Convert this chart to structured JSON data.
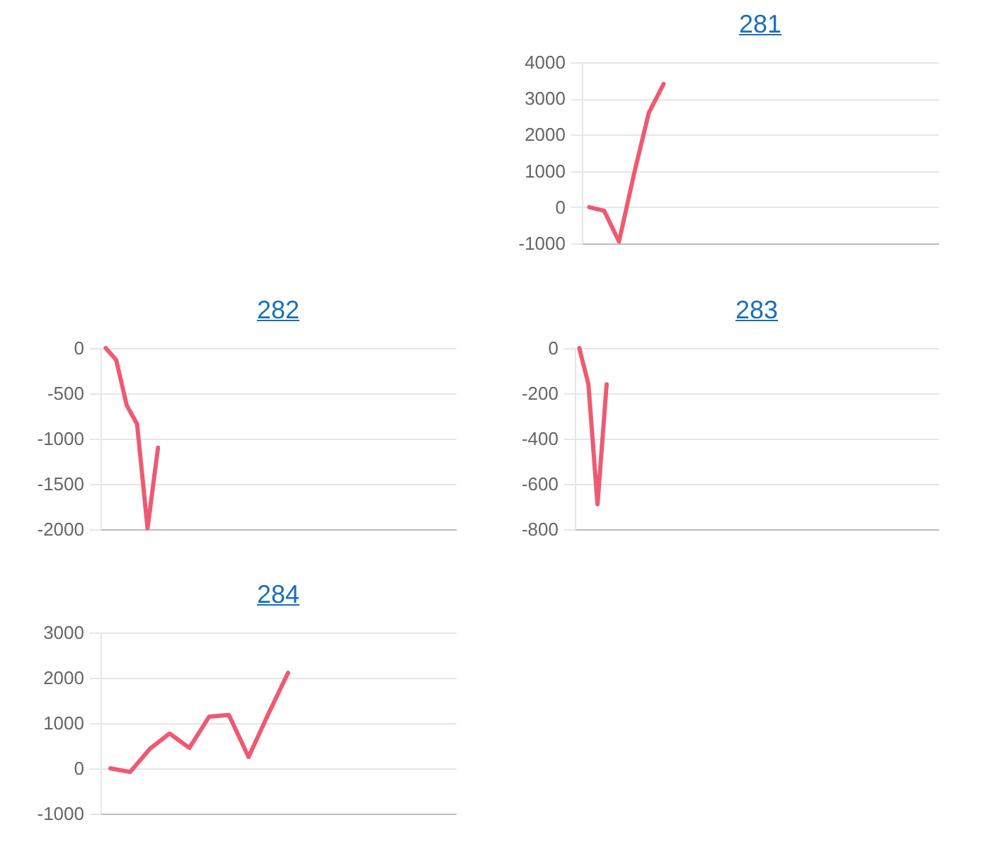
{
  "chart_data": [
    {
      "type": "line",
      "title": "281",
      "categories": [
        null,
        null,
        null,
        null,
        null,
        null,
        null,
        null,
        null,
        null,
        null,
        null,
        null,
        null,
        null,
        null,
        null,
        null,
        null,
        null,
        null,
        null,
        null,
        null
      ],
      "tick_labels": "y",
      "grid": "y",
      "ylim": [
        -1000,
        4000
      ],
      "yticks": [
        -1000,
        0,
        1000,
        2000,
        3000,
        4000
      ],
      "series": [
        {
          "color": "#ee5a72",
          "values": [
            0,
            -100,
            -950,
            900,
            2600,
            3400,
            null,
            null,
            null,
            null,
            null,
            null,
            null,
            null,
            null,
            null,
            null,
            null,
            null,
            null,
            null,
            null,
            null,
            null
          ]
        }
      ]
    },
    {
      "type": "line",
      "title": "282",
      "categories": [
        null,
        null,
        null,
        null,
        null,
        null,
        null,
        null,
        null,
        null,
        null,
        null,
        null,
        null,
        null,
        null,
        null,
        null,
        null,
        null,
        null,
        null,
        null,
        null,
        null,
        null,
        null,
        null,
        null,
        null,
        null,
        null,
        null,
        null
      ],
      "tick_labels": "y",
      "grid": "y",
      "ylim": [
        -2000,
        0
      ],
      "yticks": [
        -2000,
        -1500,
        -1000,
        -500,
        0
      ],
      "series": [
        {
          "color": "#ee5a72",
          "values": [
            0,
            -130,
            -630,
            -840,
            -1990,
            -1100,
            null,
            null,
            null,
            null,
            null,
            null,
            null,
            null,
            null,
            null,
            null,
            null,
            null,
            null,
            null,
            null,
            null,
            null,
            null,
            null,
            null,
            null,
            null,
            null,
            null,
            null,
            null,
            null
          ]
        }
      ]
    },
    {
      "type": "line",
      "title": "283",
      "categories": [
        null,
        null,
        null,
        null,
        null,
        null,
        null,
        null,
        null,
        null,
        null,
        null,
        null,
        null,
        null,
        null,
        null,
        null,
        null,
        null,
        null,
        null,
        null,
        null,
        null,
        null,
        null,
        null,
        null,
        null,
        null,
        null,
        null,
        null,
        null,
        null,
        null,
        null,
        null,
        null
      ],
      "tick_labels": "y",
      "grid": "y",
      "ylim": [
        -800,
        0
      ],
      "yticks": [
        -800,
        -600,
        -400,
        -200,
        0
      ],
      "series": [
        {
          "color": "#ee5a72",
          "values": [
            0,
            -160,
            -690,
            -160,
            null,
            null,
            null,
            null,
            null,
            null,
            null,
            null,
            null,
            null,
            null,
            null,
            null,
            null,
            null,
            null,
            null,
            null,
            null,
            null,
            null,
            null,
            null,
            null,
            null,
            null,
            null,
            null,
            null,
            null,
            null,
            null,
            null,
            null,
            null,
            null
          ]
        }
      ]
    },
    {
      "type": "line",
      "title": "284",
      "categories": [
        null,
        null,
        null,
        null,
        null,
        null,
        null,
        null,
        null,
        null,
        null,
        null,
        null,
        null,
        null,
        null,
        null,
        null
      ],
      "tick_labels": "y",
      "grid": "y",
      "ylim": [
        -1000,
        3000
      ],
      "yticks": [
        -1000,
        0,
        1000,
        2000,
        3000
      ],
      "series": [
        {
          "color": "#ee5a72",
          "values": [
            0,
            -80,
            430,
            770,
            450,
            1140,
            1180,
            250,
            1200,
            2110,
            null,
            null,
            null,
            null,
            null,
            null,
            null,
            null
          ]
        }
      ]
    }
  ]
}
